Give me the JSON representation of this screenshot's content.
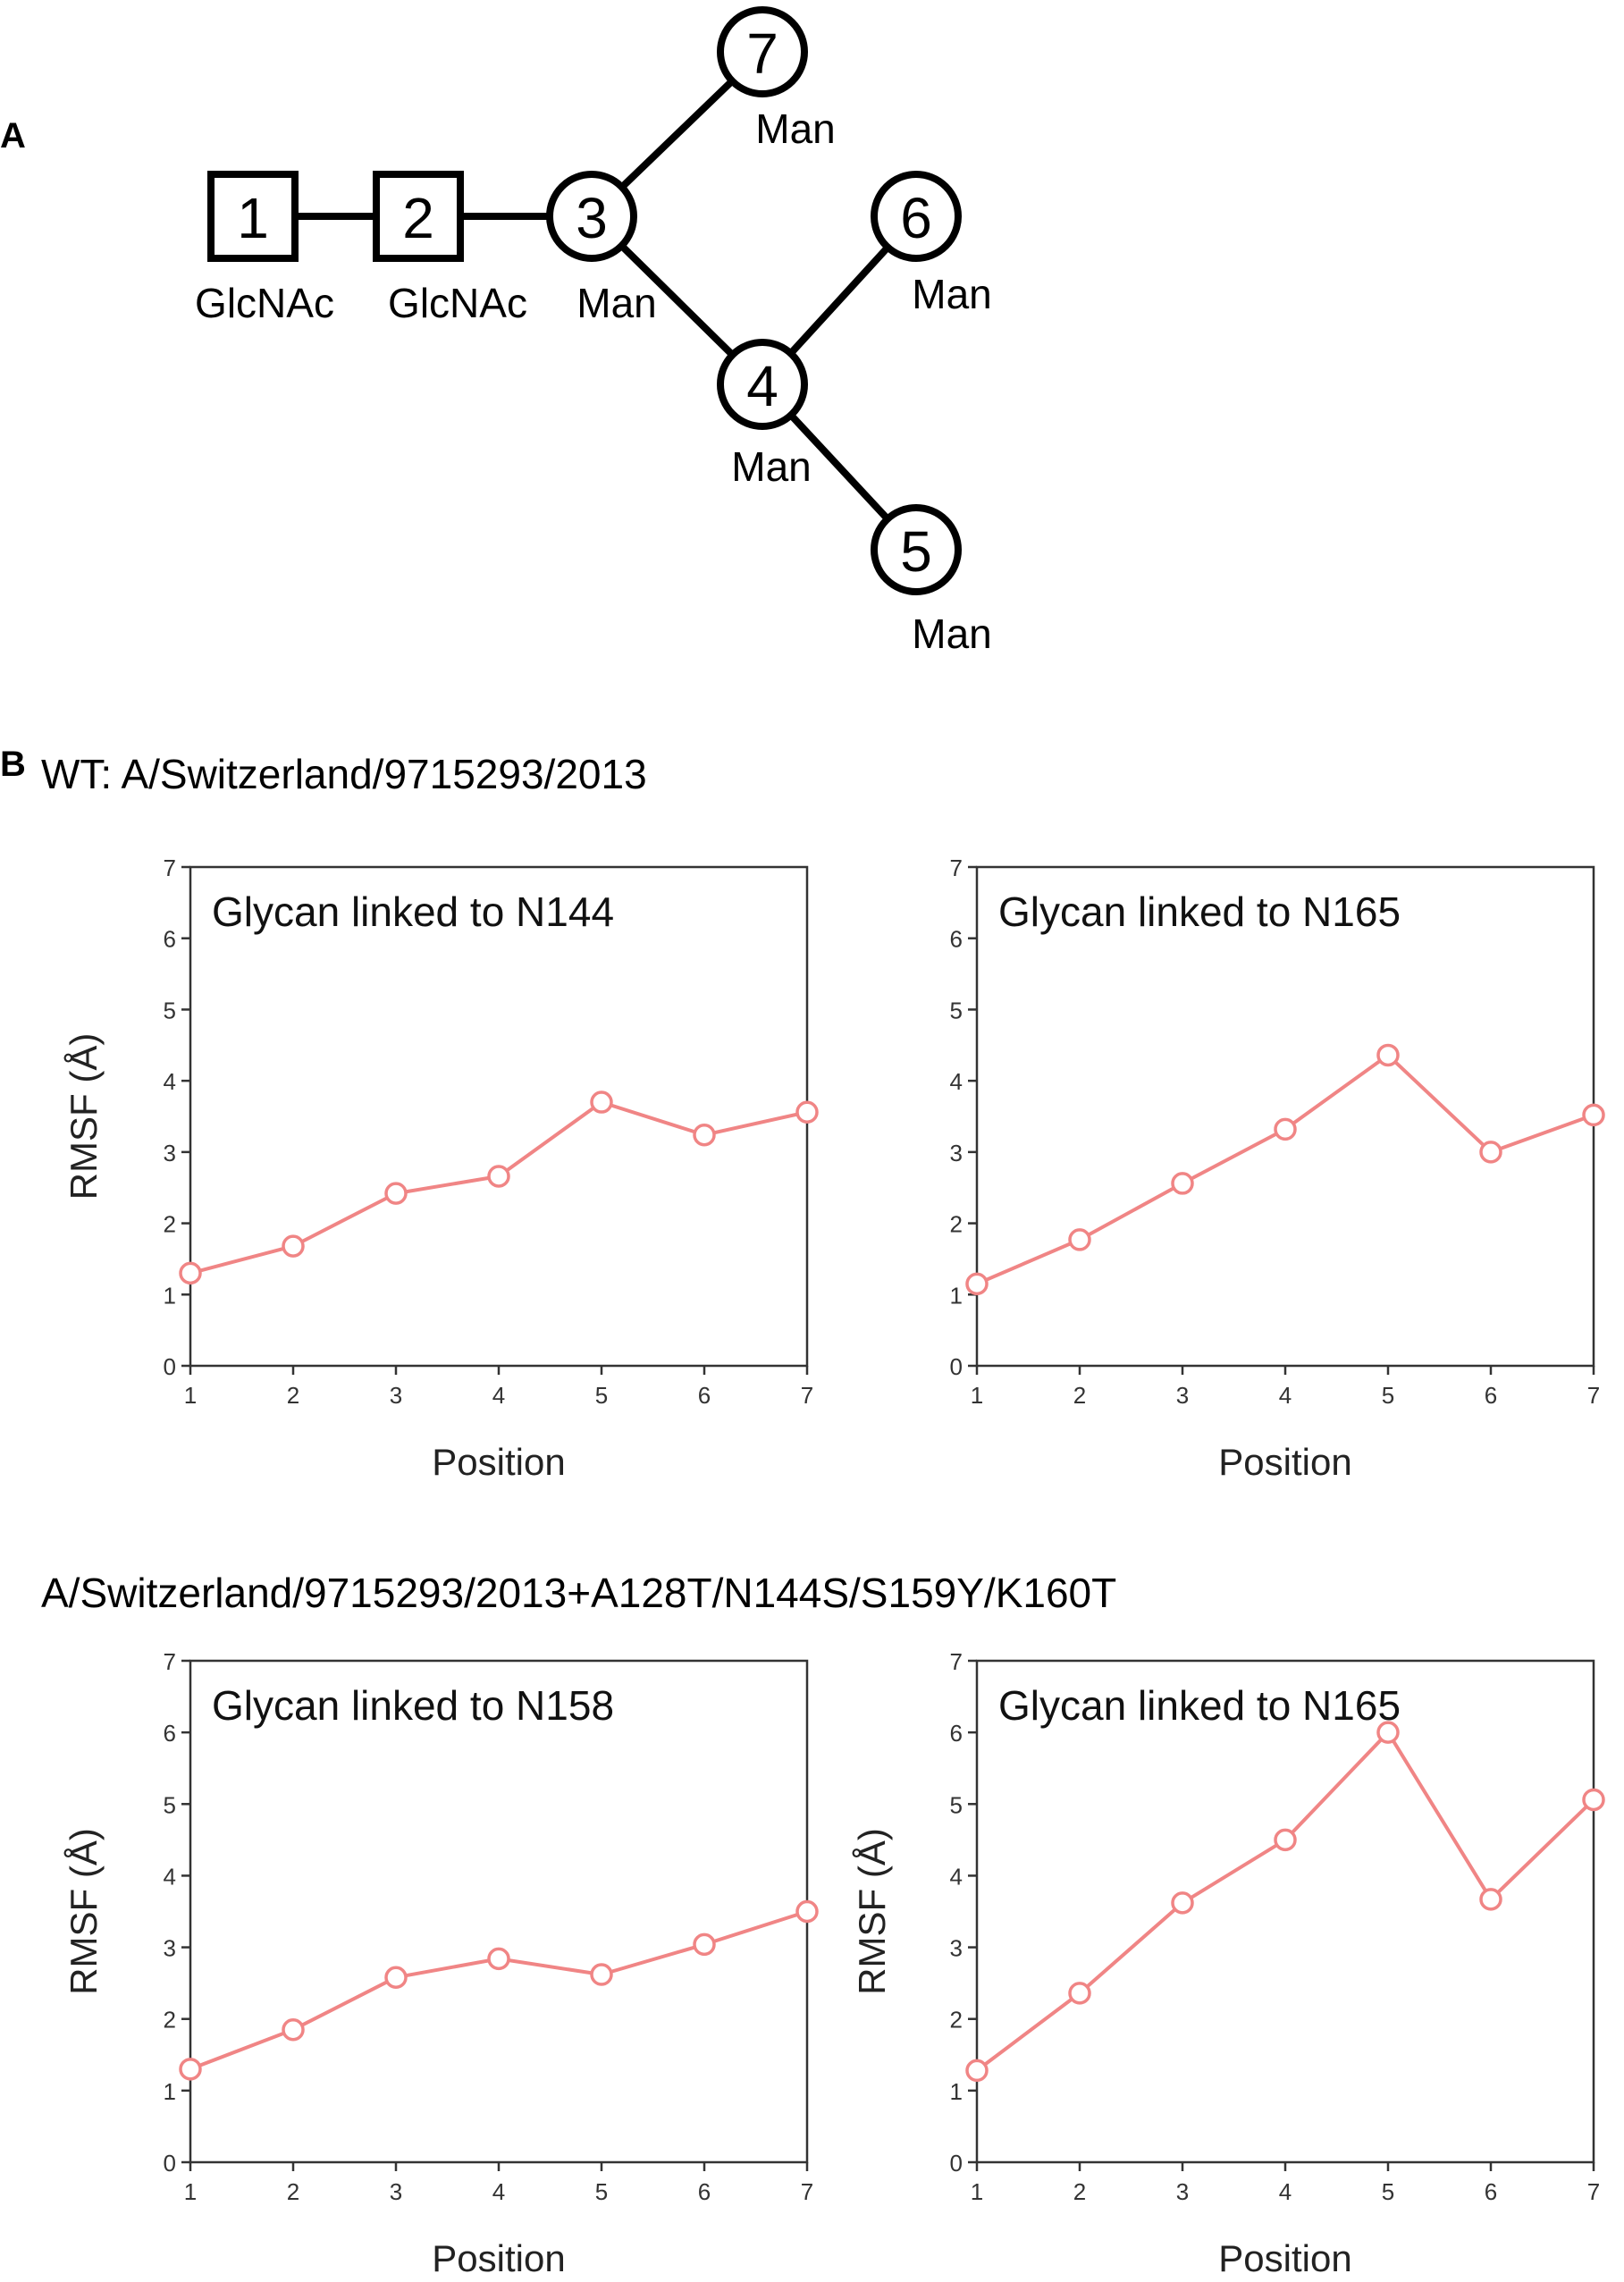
{
  "panel_a": {
    "label": "A",
    "diagram_name": "glycan-structure-diagram",
    "nodes": [
      {
        "id": "1",
        "shape": "square",
        "label": "GlcNAc"
      },
      {
        "id": "2",
        "shape": "square",
        "label": "GlcNAc"
      },
      {
        "id": "3",
        "shape": "circle",
        "label": "Man"
      },
      {
        "id": "4",
        "shape": "circle",
        "label": "Man"
      },
      {
        "id": "5",
        "shape": "circle",
        "label": "Man"
      },
      {
        "id": "6",
        "shape": "circle",
        "label": "Man"
      },
      {
        "id": "7",
        "shape": "circle",
        "label": "Man"
      }
    ],
    "edges": [
      [
        "1",
        "2"
      ],
      [
        "2",
        "3"
      ],
      [
        "3",
        "7"
      ],
      [
        "3",
        "4"
      ],
      [
        "4",
        "6"
      ],
      [
        "4",
        "5"
      ]
    ]
  },
  "panel_b": {
    "label": "B",
    "wt_title": "WT: A/Switzerland/9715293/2013",
    "mutant_title": "A/Switzerland/9715293/2013+A128T/N144S/S159Y/K160T"
  },
  "colors": {
    "series_line": "#f08585",
    "axis": "#333333",
    "diagram": "#000000"
  },
  "chart_data": [
    {
      "type": "line",
      "title": "Glycan linked to N144",
      "xlabel": "Position",
      "ylabel": "RMSF (Å)",
      "xlim": [
        1,
        7
      ],
      "ylim": [
        0,
        7
      ],
      "x": [
        1,
        2,
        3,
        4,
        5,
        6,
        7
      ],
      "xticks": [
        "1",
        "2",
        "3",
        "4",
        "5",
        "6",
        "7"
      ],
      "yticks": [
        "0",
        "1",
        "2",
        "3",
        "4",
        "5",
        "6",
        "7"
      ],
      "values": [
        1.3,
        1.68,
        2.42,
        2.66,
        3.7,
        3.24,
        3.56
      ]
    },
    {
      "type": "line",
      "title": "Glycan linked to N165",
      "xlabel": "Position",
      "ylabel": "",
      "xlim": [
        1,
        7
      ],
      "ylim": [
        0,
        7
      ],
      "x": [
        1,
        2,
        3,
        4,
        5,
        6,
        7
      ],
      "xticks": [
        "1",
        "2",
        "3",
        "4",
        "5",
        "6",
        "7"
      ],
      "yticks": [
        "0",
        "1",
        "2",
        "3",
        "4",
        "5",
        "6",
        "7"
      ],
      "values": [
        1.15,
        1.77,
        2.56,
        3.32,
        4.36,
        3.0,
        3.52
      ]
    },
    {
      "type": "line",
      "title": "Glycan linked to N158",
      "xlabel": "Position",
      "ylabel": "RMSF (Å)",
      "xlim": [
        1,
        7
      ],
      "ylim": [
        0,
        7
      ],
      "x": [
        1,
        2,
        3,
        4,
        5,
        6,
        7
      ],
      "xticks": [
        "1",
        "2",
        "3",
        "4",
        "5",
        "6",
        "7"
      ],
      "yticks": [
        "0",
        "1",
        "2",
        "3",
        "4",
        "5",
        "6",
        "7"
      ],
      "values": [
        1.3,
        1.85,
        2.58,
        2.84,
        2.62,
        3.04,
        3.5
      ]
    },
    {
      "type": "line",
      "title": "Glycan linked to N165",
      "xlabel": "Position",
      "ylabel": "RMSF (Å)",
      "xlim": [
        1,
        7
      ],
      "ylim": [
        0,
        7
      ],
      "x": [
        1,
        2,
        3,
        4,
        5,
        6,
        7
      ],
      "xticks": [
        "1",
        "2",
        "3",
        "4",
        "5",
        "6",
        "7"
      ],
      "yticks": [
        "0",
        "1",
        "2",
        "3",
        "4",
        "5",
        "6",
        "7"
      ],
      "values": [
        1.28,
        2.36,
        3.62,
        4.5,
        6.0,
        3.67,
        5.06
      ]
    }
  ]
}
